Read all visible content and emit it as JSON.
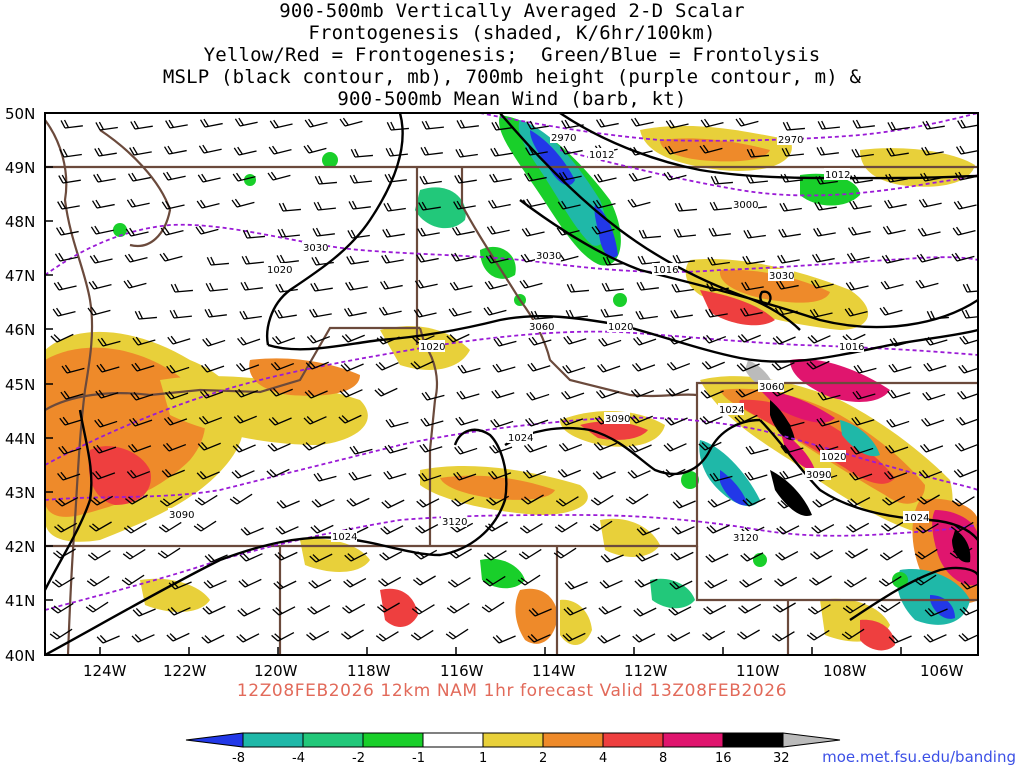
{
  "title": {
    "line1": "900-500mb Vertically Averaged 2-D Scalar",
    "line2": "Frontogenesis (shaded, K/6hr/100km)",
    "line3": "Yellow/Red = Frontogenesis;  Green/Blue = Frontolysis",
    "line4": "MSLP (black contour, mb), 700mb height (purple contour, m) &",
    "line5": "900-500mb Mean Wind (barb, kt)"
  },
  "map": {
    "lat_labels": [
      "50N",
      "49N",
      "48N",
      "47N",
      "46N",
      "45N",
      "44N",
      "43N",
      "42N",
      "41N",
      "40N"
    ],
    "lon_labels": [
      "124W",
      "122W",
      "120W",
      "118W",
      "116W",
      "114W",
      "112W",
      "110W",
      "108W",
      "106W"
    ],
    "mslp_labels": [
      "1012",
      "1012",
      "1016",
      "1016",
      "1020",
      "1020",
      "1020",
      "1020",
      "1024",
      "1024",
      "1024",
      "1024"
    ],
    "height_labels": [
      "2970",
      "2970",
      "3000",
      "3030",
      "3030",
      "3030",
      "3060",
      "3060",
      "3090",
      "3090",
      "3090",
      "3120",
      "3120"
    ],
    "colors": {
      "mslp_contour": "#000000",
      "height_contour": "#9a1ad6",
      "border": "#6b4a3c",
      "wind_barb": "#000000"
    }
  },
  "footer": {
    "run_info": "12Z08FEB2026 12km NAM 1hr forecast Valid 13Z08FEB2026",
    "credit": "moe.met.fsu.edu/banding"
  },
  "colorbar": {
    "labels": [
      "-8",
      "-4",
      "-2",
      "-1",
      "1",
      "2",
      "4",
      "8",
      "16",
      "32"
    ],
    "colors": [
      "#2238e8",
      "#1fb8a8",
      "#22c87a",
      "#19cf2a",
      "#ffffff",
      "#e8d03a",
      "#ee8a2a",
      "#ee3f3f",
      "#e0156e",
      "#000000",
      "#bbbbbb"
    ]
  }
}
